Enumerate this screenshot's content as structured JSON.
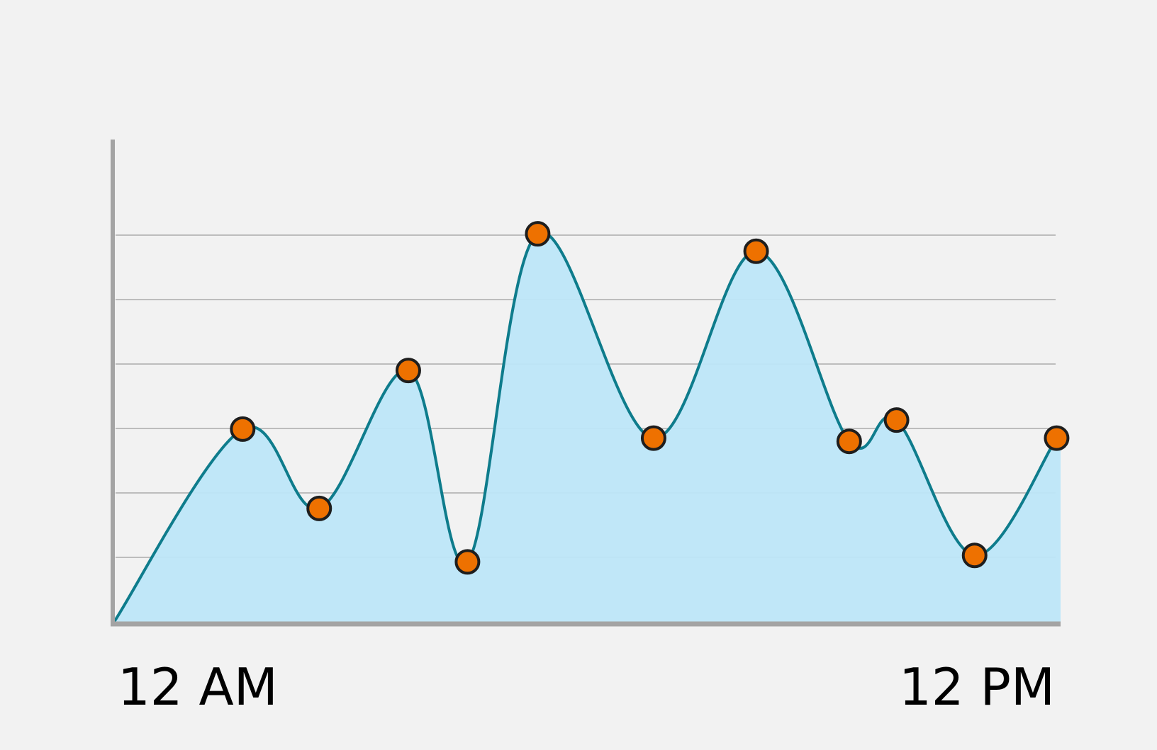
{
  "chart_data": {
    "type": "area",
    "title": "",
    "xlabel": "",
    "ylabel": "",
    "x_tick_labels": [
      "12 AM",
      "12 PM"
    ],
    "xlim": [
      0,
      12
    ],
    "ylim": [
      0,
      6
    ],
    "y_gridlines": [
      1,
      2,
      3,
      4,
      5,
      6
    ],
    "y_tick_labels_shown": false,
    "grid": "horizontal",
    "legend": "none",
    "points": [
      {
        "x": 0.0,
        "y": 0.0
      },
      {
        "x": 1.63,
        "y": 2.99
      },
      {
        "x": 2.6,
        "y": 1.76
      },
      {
        "x": 3.73,
        "y": 3.9
      },
      {
        "x": 4.48,
        "y": 0.93
      },
      {
        "x": 5.37,
        "y": 6.02
      },
      {
        "x": 6.84,
        "y": 2.85
      },
      {
        "x": 8.14,
        "y": 5.75
      },
      {
        "x": 9.32,
        "y": 2.8
      },
      {
        "x": 9.92,
        "y": 3.13
      },
      {
        "x": 10.91,
        "y": 1.03
      },
      {
        "x": 11.95,
        "y": 2.85
      }
    ],
    "marker_from_index": 1,
    "colors": {
      "line": "#0e7c8c",
      "fill": "#bde6f8",
      "marker_fill": "#ee7100",
      "marker_stroke": "#1e1e1e",
      "axis": "#a4a4a4",
      "grid": "#bdbdbd",
      "background": "#f2f2f2"
    }
  }
}
